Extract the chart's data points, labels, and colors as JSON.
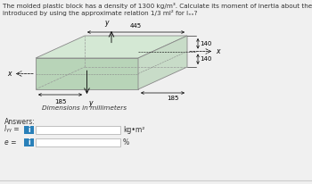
{
  "title_line1": "The molded plastic block has a density of 1300 kg/m³. Calculate its moment of inertia about the y-y axis. What percentage error e is",
  "title_line2": "introduced by using the approximate relation 1/3 ml² for lₓₓ?",
  "dim_445": "445",
  "dim_185_front": "185",
  "dim_185_back": "185",
  "dim_140_top": "140",
  "dim_140_bot": "140",
  "dim_label": "Dimensions in millimeters",
  "answers_label": "Answers:",
  "lyy_label": "lᵧᵧ =",
  "e_label": "e =",
  "unit_lyy": "kg•m²",
  "unit_e": "%",
  "box_top_color": "#d4e8d4",
  "box_front_color": "#b8d4b8",
  "box_side_color": "#c8dcc8",
  "box_edge_color": "#888888",
  "bg_color": "#f0f0f0",
  "text_color": "#333333",
  "answer_box_color": "#2980b9",
  "answer_field_bg": "#ffffff",
  "answer_field_border": "#aaaaaa",
  "sep_line_color": "#cccccc",
  "font_size_title": 5.2,
  "font_size_dim": 5.0,
  "font_size_axis": 5.5,
  "font_size_answers": 5.5
}
